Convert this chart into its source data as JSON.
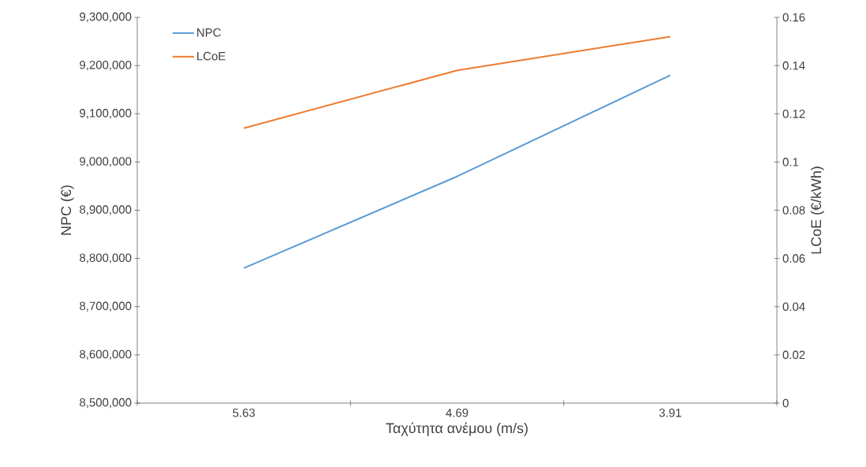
{
  "chart_data": {
    "type": "line",
    "xlabel": "Ταχύτητα ανέμου (m/s)",
    "ylabel": "NPC (€)",
    "y2label": "LCoE (€/kWh)",
    "categories": [
      "5.63",
      "4.69",
      "3.91"
    ],
    "series": [
      {
        "name": "NPC",
        "color": "#5b9bd5",
        "values": [
          8780000,
          8970000,
          9180000
        ]
      },
      {
        "name": "LCoE",
        "color": "#ed7d31",
        "axis": "y2",
        "values": [
          0.114,
          0.138,
          0.152
        ]
      }
    ],
    "ylim": [
      8500000,
      9300000
    ],
    "yticks": [
      {
        "value": 8500000,
        "label": "8,500,000"
      },
      {
        "value": 8600000,
        "label": "8,600,000"
      },
      {
        "value": 8700000,
        "label": "8,700,000"
      },
      {
        "value": 8800000,
        "label": "8,800,000"
      },
      {
        "value": 8900000,
        "label": "8,900,000"
      },
      {
        "value": 9000000,
        "label": "9,000,000"
      },
      {
        "value": 9100000,
        "label": "9,100,000"
      },
      {
        "value": 9200000,
        "label": "9,200,000"
      },
      {
        "value": 9300000,
        "label": "9,300,000"
      }
    ],
    "y2lim": [
      0,
      0.16
    ],
    "y2ticks": [
      0,
      0.02,
      0.04,
      0.06,
      0.08,
      0.1,
      0.12,
      0.14,
      0.16
    ],
    "grid": false,
    "legend": "top left"
  }
}
